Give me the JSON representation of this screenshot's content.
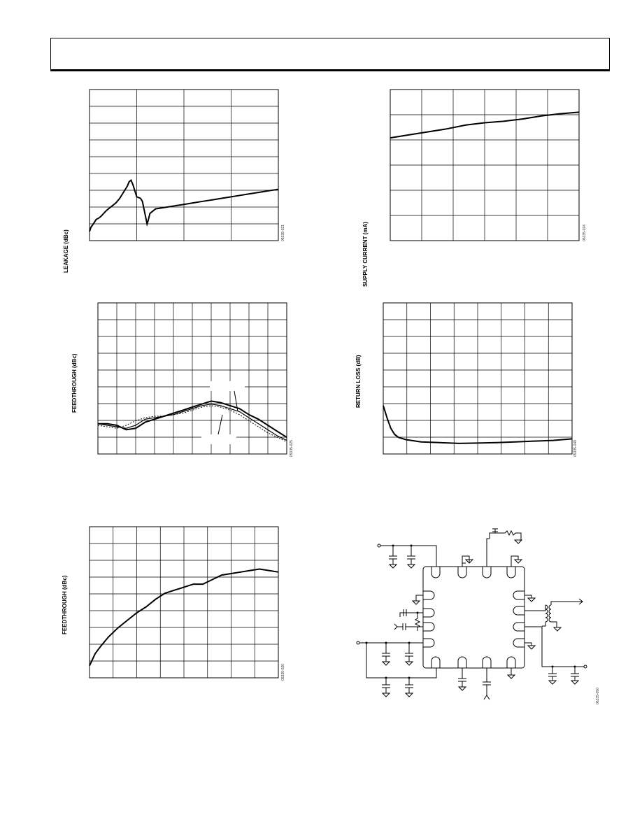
{
  "chart_data": [
    {
      "type": "line",
      "ylabel": "LEAKAGE (dBc)",
      "fig_id": "05335-021",
      "grid": true,
      "series": [
        {
          "values": [
            [
              0,
              0.06
            ],
            [
              0.008,
              0.09
            ],
            [
              0.02,
              0.11
            ],
            [
              0.035,
              0.14
            ],
            [
              0.05,
              0.15
            ],
            [
              0.06,
              0.16
            ],
            [
              0.075,
              0.18
            ],
            [
              0.09,
              0.2
            ],
            [
              0.1,
              0.21
            ],
            [
              0.12,
              0.23
            ],
            [
              0.14,
              0.25
            ],
            [
              0.16,
              0.28
            ],
            [
              0.18,
              0.32
            ],
            [
              0.2,
              0.36
            ],
            [
              0.21,
              0.39
            ],
            [
              0.22,
              0.4
            ],
            [
              0.23,
              0.37
            ],
            [
              0.24,
              0.33
            ],
            [
              0.25,
              0.29
            ],
            [
              0.26,
              0.285
            ],
            [
              0.27,
              0.28
            ],
            [
              0.28,
              0.26
            ],
            [
              0.29,
              0.2
            ],
            [
              0.3,
              0.14
            ],
            [
              0.305,
              0.11
            ],
            [
              0.31,
              0.13
            ],
            [
              0.32,
              0.18
            ],
            [
              0.35,
              0.21
            ],
            [
              0.4,
              0.22
            ],
            [
              0.45,
              0.23
            ],
            [
              0.5,
              0.24
            ],
            [
              0.55,
              0.25
            ],
            [
              0.6,
              0.26
            ],
            [
              0.65,
              0.27
            ],
            [
              0.7,
              0.28
            ],
            [
              0.75,
              0.29
            ],
            [
              0.8,
              0.3
            ],
            [
              0.85,
              0.31
            ],
            [
              0.9,
              0.32
            ],
            [
              0.95,
              0.33
            ],
            [
              1,
              0.34
            ]
          ]
        }
      ]
    },
    {
      "type": "line",
      "ylabel": "SUPPLY CURRENT (mA)",
      "fig_id": "05335-024",
      "grid": true,
      "series": [
        {
          "values": [
            [
              0,
              0.68
            ],
            [
              0.1,
              0.7
            ],
            [
              0.2,
              0.72
            ],
            [
              0.3,
              0.74
            ],
            [
              0.4,
              0.765
            ],
            [
              0.5,
              0.78
            ],
            [
              0.6,
              0.79
            ],
            [
              0.7,
              0.805
            ],
            [
              0.8,
              0.825
            ],
            [
              0.9,
              0.84
            ],
            [
              1,
              0.85
            ]
          ]
        }
      ]
    },
    {
      "type": "line",
      "ylabel": "FEEDTHROUGH (dBc)",
      "fig_id": "05335-025",
      "grid": true,
      "series": [
        {
          "values": [
            [
              0,
              0.2
            ],
            [
              0.05,
              0.2
            ],
            [
              0.1,
              0.19
            ],
            [
              0.15,
              0.16
            ],
            [
              0.2,
              0.17
            ],
            [
              0.25,
              0.21
            ],
            [
              0.3,
              0.23
            ],
            [
              0.35,
              0.25
            ],
            [
              0.4,
              0.27
            ],
            [
              0.45,
              0.29
            ],
            [
              0.5,
              0.31
            ],
            [
              0.55,
              0.33
            ],
            [
              0.6,
              0.35
            ],
            [
              0.65,
              0.34
            ],
            [
              0.7,
              0.32
            ],
            [
              0.75,
              0.3
            ],
            [
              0.8,
              0.26
            ],
            [
              0.85,
              0.23
            ],
            [
              0.9,
              0.19
            ],
            [
              0.95,
              0.15
            ],
            [
              1,
              0.11
            ]
          ]
        },
        {
          "values": [
            [
              0,
              0.2
            ],
            [
              0.05,
              0.19
            ],
            [
              0.1,
              0.18
            ],
            [
              0.15,
              0.17
            ],
            [
              0.2,
              0.19
            ],
            [
              0.25,
              0.23
            ],
            [
              0.3,
              0.24
            ],
            [
              0.35,
              0.25
            ],
            [
              0.4,
              0.26
            ],
            [
              0.45,
              0.28
            ],
            [
              0.5,
              0.3
            ],
            [
              0.55,
              0.32
            ],
            [
              0.6,
              0.33
            ],
            [
              0.65,
              0.32
            ],
            [
              0.7,
              0.3
            ],
            [
              0.75,
              0.28
            ],
            [
              0.8,
              0.24
            ],
            [
              0.85,
              0.2
            ],
            [
              0.9,
              0.16
            ],
            [
              0.95,
              0.12
            ],
            [
              1,
              0.09
            ]
          ]
        },
        {
          "values": [
            [
              0,
              0.19
            ],
            [
              0.05,
              0.18
            ],
            [
              0.1,
              0.17
            ],
            [
              0.15,
              0.19
            ],
            [
              0.2,
              0.22
            ],
            [
              0.25,
              0.24
            ],
            [
              0.3,
              0.25
            ],
            [
              0.35,
              0.25
            ],
            [
              0.4,
              0.26
            ],
            [
              0.45,
              0.27
            ],
            [
              0.5,
              0.29
            ],
            [
              0.55,
              0.31
            ],
            [
              0.6,
              0.32
            ],
            [
              0.65,
              0.31
            ],
            [
              0.7,
              0.29
            ],
            [
              0.75,
              0.26
            ],
            [
              0.8,
              0.22
            ],
            [
              0.85,
              0.18
            ],
            [
              0.9,
              0.14
            ],
            [
              0.95,
              0.11
            ],
            [
              1,
              0.08
            ]
          ]
        }
      ]
    },
    {
      "type": "line",
      "ylabel": "RETURN LOSS (dB)",
      "fig_id": "05335-049",
      "grid": true,
      "series": [
        {
          "values": [
            [
              0,
              0.32
            ],
            [
              0.02,
              0.24
            ],
            [
              0.04,
              0.17
            ],
            [
              0.06,
              0.13
            ],
            [
              0.08,
              0.11
            ],
            [
              0.12,
              0.095
            ],
            [
              0.2,
              0.08
            ],
            [
              0.3,
              0.075
            ],
            [
              0.4,
              0.07
            ],
            [
              0.5,
              0.072
            ],
            [
              0.6,
              0.075
            ],
            [
              0.7,
              0.08
            ],
            [
              0.8,
              0.085
            ],
            [
              0.9,
              0.09
            ],
            [
              1,
              0.1
            ]
          ]
        }
      ]
    },
    {
      "type": "line",
      "ylabel": "FEEDTHROUGH (dBc)",
      "fig_id": "05335-026",
      "grid": true,
      "series": [
        {
          "values": [
            [
              0,
              0.08
            ],
            [
              0.03,
              0.16
            ],
            [
              0.06,
              0.21
            ],
            [
              0.1,
              0.27
            ],
            [
              0.15,
              0.33
            ],
            [
              0.2,
              0.38
            ],
            [
              0.25,
              0.43
            ],
            [
              0.3,
              0.47
            ],
            [
              0.35,
              0.52
            ],
            [
              0.4,
              0.56
            ],
            [
              0.45,
              0.58
            ],
            [
              0.5,
              0.6
            ],
            [
              0.55,
              0.62
            ],
            [
              0.6,
              0.62
            ],
            [
              0.65,
              0.65
            ],
            [
              0.7,
              0.68
            ],
            [
              0.75,
              0.69
            ],
            [
              0.8,
              0.7
            ],
            [
              0.85,
              0.71
            ],
            [
              0.9,
              0.72
            ],
            [
              0.95,
              0.71
            ],
            [
              1,
              0.7
            ]
          ]
        }
      ]
    }
  ],
  "schematic": {
    "fig_id": "05335-050"
  }
}
